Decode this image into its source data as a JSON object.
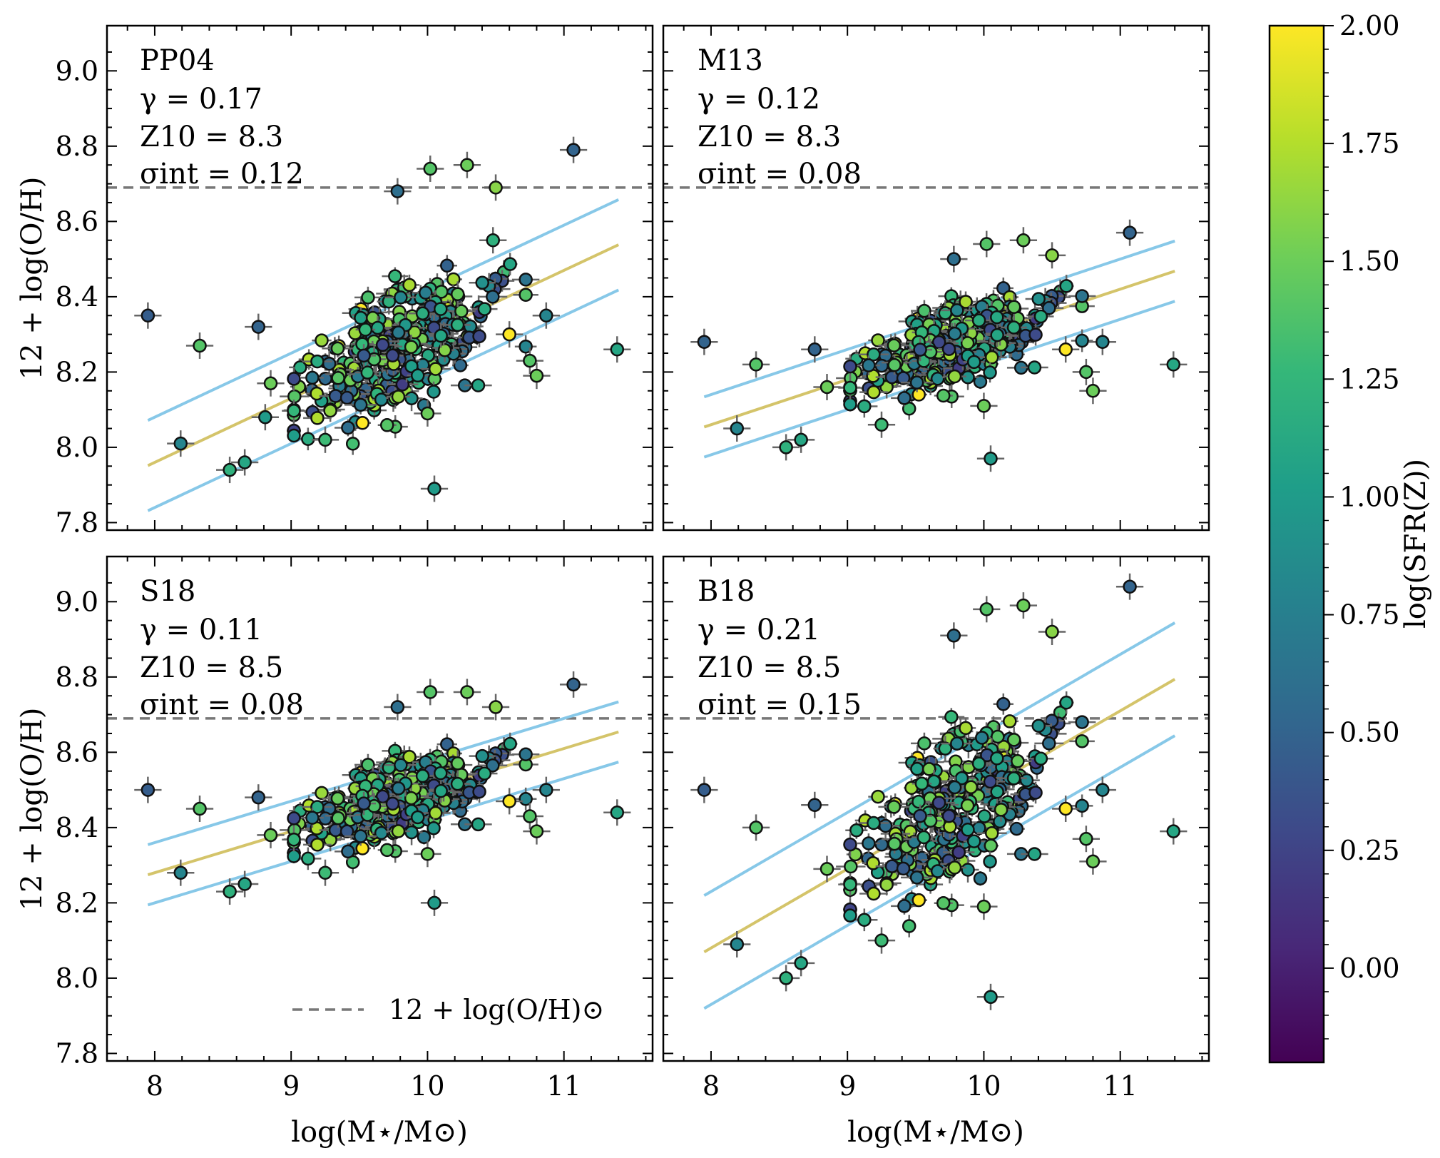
{
  "figure": {
    "xlabel": "log(M⋆/M⊙)",
    "ylabel": "12 + log(O/H)",
    "colorbar_label": "log(SFR(Z))",
    "legend_label": "12 + log(O/H)⊙",
    "colormap": [
      "#440154",
      "#482878",
      "#3e4989",
      "#31688e",
      "#26828e",
      "#1f9e89",
      "#35b779",
      "#6ece58",
      "#b5de2b",
      "#fde725"
    ],
    "colors": {
      "fit_line": "#d4c46a",
      "scatter_band": "#87c8e8",
      "solar_line": "#777777",
      "errorbar": "#666666",
      "marker_edge": "#111111"
    }
  },
  "colorbar": {
    "range": [
      -0.2,
      2.0
    ],
    "ticks": [
      "0.00",
      "0.25",
      "0.50",
      "0.75",
      "1.00",
      "1.25",
      "1.50",
      "1.75",
      "2.00"
    ]
  },
  "chart_data": [
    {
      "type": "scatter",
      "id": "pp04",
      "annotation": {
        "name": "PP04",
        "gamma": "γ = 0.17",
        "z10": "Z10 = 8.3",
        "sigma": "σint = 0.12"
      },
      "fit": {
        "slope": 0.17,
        "intercept_at_10": 8.3,
        "sigma": 0.12
      },
      "xlim": [
        7.65,
        11.65
      ],
      "ylim": [
        7.78,
        9.12
      ],
      "xticks": [
        "8",
        "9",
        "10",
        "11"
      ],
      "yticks": [
        "7.8",
        "8.0",
        "8.2",
        "8.4",
        "8.6",
        "8.8",
        "9.0"
      ],
      "solar": 8.69,
      "show_xticklabels": false,
      "show_yticklabels": true,
      "show_ylabel": true,
      "show_xlabel": false,
      "show_legend": false,
      "outliers": [
        [
          7.95,
          8.35,
          0.45
        ],
        [
          8.19,
          8.01,
          0.8
        ],
        [
          8.33,
          8.27,
          1.4
        ],
        [
          8.55,
          7.94,
          1.2
        ],
        [
          8.66,
          7.96,
          1.1
        ],
        [
          8.76,
          8.32,
          0.5
        ],
        [
          8.81,
          8.08,
          1.0
        ],
        [
          8.85,
          8.17,
          1.5
        ],
        [
          9.25,
          8.02,
          1.3
        ],
        [
          9.78,
          8.68,
          0.6
        ],
        [
          10.02,
          8.74,
          1.4
        ],
        [
          10.05,
          7.89,
          1.0
        ],
        [
          10.29,
          8.75,
          1.5
        ],
        [
          10.48,
          8.55,
          1.2
        ],
        [
          10.5,
          8.69,
          1.6
        ],
        [
          10.75,
          8.23,
          1.4
        ],
        [
          10.8,
          8.19,
          1.5
        ],
        [
          10.87,
          8.35,
          0.8
        ],
        [
          11.07,
          8.79,
          0.5
        ],
        [
          11.39,
          8.26,
          1.1
        ],
        [
          10.6,
          8.3,
          2.0
        ],
        [
          10.0,
          8.09,
          1.5
        ]
      ]
    },
    {
      "type": "scatter",
      "id": "m13",
      "annotation": {
        "name": "M13",
        "gamma": "γ = 0.12",
        "z10": "Z10 = 8.3",
        "sigma": "σint = 0.08"
      },
      "fit": {
        "slope": 0.12,
        "intercept_at_10": 8.3,
        "sigma": 0.08
      },
      "xlim": [
        7.65,
        11.65
      ],
      "ylim": [
        7.78,
        9.12
      ],
      "xticks": [
        "8",
        "9",
        "10",
        "11"
      ],
      "yticks": [
        "7.8",
        "8.0",
        "8.2",
        "8.4",
        "8.6",
        "8.8",
        "9.0"
      ],
      "solar": 8.69,
      "show_xticklabels": false,
      "show_yticklabels": false,
      "show_ylabel": false,
      "show_xlabel": false,
      "show_legend": false,
      "outliers": [
        [
          7.95,
          8.28,
          0.5
        ],
        [
          8.19,
          8.05,
          0.8
        ],
        [
          8.33,
          8.22,
          1.4
        ],
        [
          8.55,
          8.0,
          1.2
        ],
        [
          8.66,
          8.02,
          1.1
        ],
        [
          8.76,
          8.26,
          0.5
        ],
        [
          8.85,
          8.16,
          1.5
        ],
        [
          9.25,
          8.06,
          1.3
        ],
        [
          9.78,
          8.5,
          0.6
        ],
        [
          10.05,
          7.97,
          1.0
        ],
        [
          10.02,
          8.54,
          1.4
        ],
        [
          10.29,
          8.55,
          1.5
        ],
        [
          10.5,
          8.51,
          1.6
        ],
        [
          10.75,
          8.2,
          1.4
        ],
        [
          10.8,
          8.15,
          1.5
        ],
        [
          10.87,
          8.28,
          0.8
        ],
        [
          11.07,
          8.57,
          0.5
        ],
        [
          11.39,
          8.22,
          1.1
        ],
        [
          10.6,
          8.26,
          2.0
        ],
        [
          10.0,
          8.11,
          1.5
        ]
      ]
    },
    {
      "type": "scatter",
      "id": "s18",
      "annotation": {
        "name": "S18",
        "gamma": "γ = 0.11",
        "z10": "Z10 = 8.5",
        "sigma": "σint = 0.08"
      },
      "fit": {
        "slope": 0.11,
        "intercept_at_10": 8.5,
        "sigma": 0.08
      },
      "xlim": [
        7.65,
        11.65
      ],
      "ylim": [
        7.78,
        9.12
      ],
      "xticks": [
        "8",
        "9",
        "10",
        "11"
      ],
      "yticks": [
        "7.8",
        "8.0",
        "8.2",
        "8.4",
        "8.6",
        "8.8",
        "9.0"
      ],
      "solar": 8.69,
      "show_xticklabels": true,
      "show_yticklabels": true,
      "show_ylabel": true,
      "show_xlabel": true,
      "show_legend": true,
      "outliers": [
        [
          7.95,
          8.5,
          0.45
        ],
        [
          8.19,
          8.28,
          0.8
        ],
        [
          8.33,
          8.45,
          1.4
        ],
        [
          8.55,
          8.23,
          1.2
        ],
        [
          8.66,
          8.25,
          1.1
        ],
        [
          8.76,
          8.48,
          0.5
        ],
        [
          8.85,
          8.38,
          1.5
        ],
        [
          9.25,
          8.28,
          1.3
        ],
        [
          9.78,
          8.72,
          0.6
        ],
        [
          10.05,
          8.2,
          1.0
        ],
        [
          10.02,
          8.76,
          1.4
        ],
        [
          10.29,
          8.76,
          1.5
        ],
        [
          10.5,
          8.72,
          1.6
        ],
        [
          10.75,
          8.43,
          1.4
        ],
        [
          10.8,
          8.39,
          1.5
        ],
        [
          10.87,
          8.5,
          0.8
        ],
        [
          11.07,
          8.78,
          0.5
        ],
        [
          11.39,
          8.44,
          1.1
        ],
        [
          10.6,
          8.47,
          2.0
        ],
        [
          10.0,
          8.33,
          1.5
        ]
      ]
    },
    {
      "type": "scatter",
      "id": "b18",
      "annotation": {
        "name": "B18",
        "gamma": "γ = 0.21",
        "z10": "Z10 = 8.5",
        "sigma": "σint = 0.15"
      },
      "fit": {
        "slope": 0.21,
        "intercept_at_10": 8.5,
        "sigma": 0.15
      },
      "xlim": [
        7.65,
        11.65
      ],
      "ylim": [
        7.78,
        9.12
      ],
      "xticks": [
        "8",
        "9",
        "10",
        "11"
      ],
      "yticks": [
        "7.8",
        "8.0",
        "8.2",
        "8.4",
        "8.6",
        "8.8",
        "9.0"
      ],
      "solar": 8.69,
      "show_xticklabels": true,
      "show_yticklabels": false,
      "show_ylabel": false,
      "show_xlabel": true,
      "show_legend": false,
      "outliers": [
        [
          7.95,
          8.5,
          0.45
        ],
        [
          8.19,
          8.09,
          0.8
        ],
        [
          8.33,
          8.4,
          1.4
        ],
        [
          8.55,
          8.0,
          1.2
        ],
        [
          8.66,
          8.04,
          1.1
        ],
        [
          8.76,
          8.46,
          0.5
        ],
        [
          8.85,
          8.29,
          1.5
        ],
        [
          9.25,
          8.1,
          1.3
        ],
        [
          9.78,
          8.91,
          0.6
        ],
        [
          10.05,
          7.95,
          1.0
        ],
        [
          10.02,
          8.98,
          1.4
        ],
        [
          10.29,
          8.99,
          1.5
        ],
        [
          10.5,
          8.92,
          1.6
        ],
        [
          10.75,
          8.37,
          1.4
        ],
        [
          10.8,
          8.31,
          1.5
        ],
        [
          10.87,
          8.5,
          0.8
        ],
        [
          11.07,
          9.04,
          0.5
        ],
        [
          11.39,
          8.39,
          1.1
        ],
        [
          10.6,
          8.45,
          2.0
        ],
        [
          10.0,
          8.19,
          1.5
        ]
      ]
    }
  ]
}
